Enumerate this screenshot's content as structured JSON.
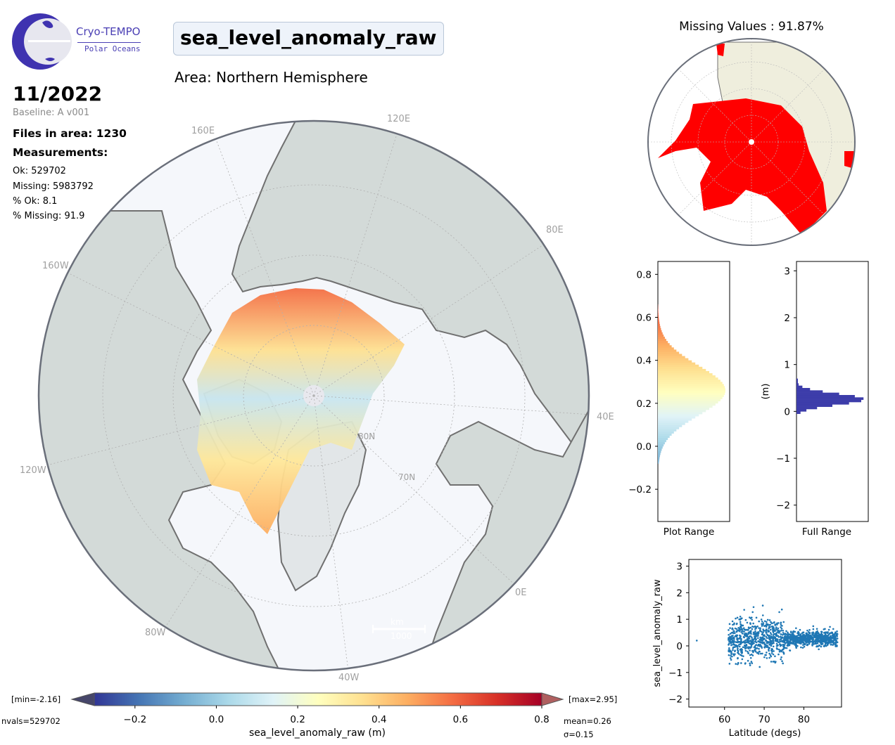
{
  "logo": {
    "name": "Cryo-TEMPO",
    "subtitle": "Polar Oceans"
  },
  "title": "sea_level_anomaly_raw",
  "area": "Area: Northern Hemisphere",
  "date": "11/2022",
  "baseline": "Baseline: A v001",
  "files": "Files in area: 1230",
  "measurements_heading": "Measurements:",
  "stats": [
    "Ok: 529702",
    "Missing: 5983792",
    "% Ok: 8.1",
    "% Missing: 91.9"
  ],
  "map": {
    "lon_labels": [
      "120E",
      "160E",
      "80E",
      "160W",
      "40E",
      "120W",
      "0E",
      "80W",
      "40W"
    ],
    "lat_labels": [
      "80N",
      "70N"
    ],
    "scale_unit": "km",
    "scale_value": "1000",
    "colors": {
      "land": "#d3dad8",
      "ice": "#f5f7fb",
      "coast": "#707070",
      "missing": "#ff0000",
      "inset_land": "#efeedd"
    }
  },
  "missing_values": "Missing Values : 91.87%",
  "hist_plot": {
    "xlabel": "Plot Range",
    "ticks": [
      "0.8",
      "0.6",
      "0.4",
      "0.2",
      "0.0",
      "−0.2"
    ],
    "tick_values": [
      0.8,
      0.6,
      0.4,
      0.2,
      0.0,
      -0.2
    ],
    "ylim": [
      -0.35,
      0.86
    ]
  },
  "hist_full": {
    "xlabel": "Full Range",
    "ylabel": "(m)",
    "ticks": [
      "3",
      "2",
      "1",
      "0",
      "−1",
      "−2"
    ],
    "tick_values": [
      3,
      2,
      1,
      0,
      -1,
      -2
    ],
    "ylim": [
      -2.35,
      3.2
    ],
    "color": "#3d3daa"
  },
  "scatter": {
    "xlabel": "Latitude (degs)",
    "ylabel": "sea_level_anomaly_raw",
    "xticks": [
      "60",
      "70",
      "80"
    ],
    "xtick_values": [
      60,
      70,
      80
    ],
    "yticks": [
      "3",
      "2",
      "1",
      "0",
      "−1",
      "−2"
    ],
    "ytick_values": [
      3,
      2,
      1,
      0,
      -1,
      -2
    ],
    "xlim": [
      51,
      89.5
    ],
    "ylim": [
      -2.3,
      3.25
    ],
    "color": "#1f77b4"
  },
  "colorbar": {
    "min_label": "[min=-2.16]",
    "max_label": "[max=2.95]",
    "ticks": [
      "−0.2",
      "0.0",
      "0.2",
      "0.4",
      "0.6",
      "0.8"
    ],
    "tick_values": [
      -0.2,
      0.0,
      0.2,
      0.4,
      0.6,
      0.8
    ],
    "range": [
      -0.3,
      0.8
    ],
    "label": "sea_level_anomaly_raw (m)",
    "nvals": "nvals=529702",
    "mean": "mean=0.26",
    "sigma": "σ=0.15",
    "colormap": [
      "#313695",
      "#4575b4",
      "#74add1",
      "#abd9e9",
      "#e0f3f8",
      "#ffffbf",
      "#fee090",
      "#fdae61",
      "#f46d43",
      "#d73027",
      "#a50026"
    ]
  }
}
